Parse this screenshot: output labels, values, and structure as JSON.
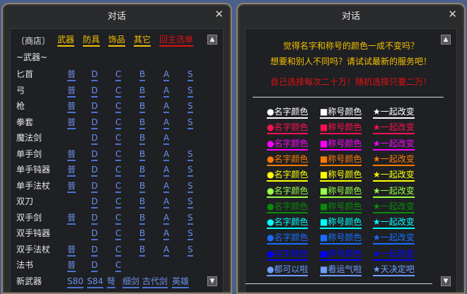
{
  "left": {
    "title": "对话",
    "shop_label": "〔商店〕",
    "tabs": [
      {
        "label": "武器",
        "color": "#f5c000"
      },
      {
        "label": "防具",
        "color": "#f5c000"
      },
      {
        "label": "饰品",
        "color": "#f5c000"
      },
      {
        "label": "其它",
        "color": "#f5c000"
      },
      {
        "label": "回主选单",
        "color": "#e01010"
      }
    ],
    "section": "~武器~",
    "rows": [
      {
        "label": "匕首",
        "links": [
          "普",
          "D",
          "C",
          "B",
          "A",
          "S"
        ]
      },
      {
        "label": "弓",
        "links": [
          "普",
          "D",
          "C",
          "B",
          "A",
          "S"
        ]
      },
      {
        "label": "枪",
        "links": [
          "普",
          "D",
          "C",
          "B",
          "A",
          "S"
        ]
      },
      {
        "label": "拳套",
        "links": [
          "普",
          "D",
          "C",
          "B",
          "A",
          "S"
        ]
      },
      {
        "label": "魔法剑",
        "links": [
          "",
          "D",
          "C",
          "B",
          "A",
          ""
        ]
      },
      {
        "label": "单手剑",
        "links": [
          "普",
          "D",
          "C",
          "B",
          "A",
          "S"
        ]
      },
      {
        "label": "单手钝器",
        "links": [
          "普",
          "D",
          "C",
          "B",
          "A",
          "S"
        ]
      },
      {
        "label": "单手法杖",
        "links": [
          "普",
          "D",
          "C",
          "B",
          "A",
          "S"
        ]
      },
      {
        "label": "双刀",
        "links": [
          "",
          "D",
          "C",
          "B",
          "A",
          "S"
        ]
      },
      {
        "label": "双手剑",
        "links": [
          "普",
          "D",
          "C",
          "B",
          "A",
          "S"
        ]
      },
      {
        "label": "双手钝器",
        "links": [
          "",
          "D",
          "C",
          "B",
          "A",
          "S"
        ]
      },
      {
        "label": "双手法杖",
        "links": [
          "普",
          "D",
          "C",
          "B",
          "A",
          "S"
        ]
      },
      {
        "label": "法书",
        "links": [
          "普",
          "D",
          "C",
          "",
          "",
          ""
        ]
      }
    ],
    "new_row": {
      "label": "新武器",
      "links": [
        "S80",
        "S84",
        "弩",
        "细剑",
        "古代剑",
        "英雄"
      ]
    }
  },
  "right": {
    "title": "对话",
    "line1": "觉得名字和称号的颜色一成不变吗？",
    "line2": "想要和别人不同吗？请试试最新的服务吧！",
    "line3": "自己选择每次二十万！随机选择只要二万！",
    "rows": [
      {
        "color": "#ffffff",
        "items": [
          "●名字颜色",
          "■称号颜色",
          "★一起改变"
        ]
      },
      {
        "color": "#ff1050",
        "items": [
          "●名字颜色",
          "■称号颜色",
          "★一起改变"
        ]
      },
      {
        "color": "#ff00ff",
        "items": [
          "●名字颜色",
          "■称号颜色",
          "★一起改变"
        ]
      },
      {
        "color": "#ff7a00",
        "items": [
          "●名字颜色",
          "■称号颜色",
          "★一起改变"
        ]
      },
      {
        "color": "#ffff00",
        "items": [
          "●名字颜色",
          "■称号颜色",
          "★一起改变"
        ]
      },
      {
        "color": "#99ff44",
        "items": [
          "●名字颜色",
          "■称号颜色",
          "★一起改变"
        ]
      },
      {
        "color": "#0a8a0a",
        "items": [
          "●名字颜色",
          "■称号颜色",
          "★一起改变"
        ]
      },
      {
        "color": "#00ffff",
        "items": [
          "●名字颜色",
          "■称号颜色",
          "★一起改变"
        ]
      },
      {
        "color": "#1a6cff",
        "items": [
          "●名字颜色",
          "■称号颜色",
          "★一起改变"
        ]
      },
      {
        "color": "#0000ff",
        "items": [
          "●名字颜色",
          "■称号颜色",
          "★一起改变"
        ]
      },
      {
        "color": "#6f9cff",
        "items": [
          "●都可以啦",
          "■看运气啦",
          "★天决定吧"
        ]
      }
    ]
  },
  "icons": {
    "close": "✕",
    "up": "▲",
    "down": "▼"
  }
}
